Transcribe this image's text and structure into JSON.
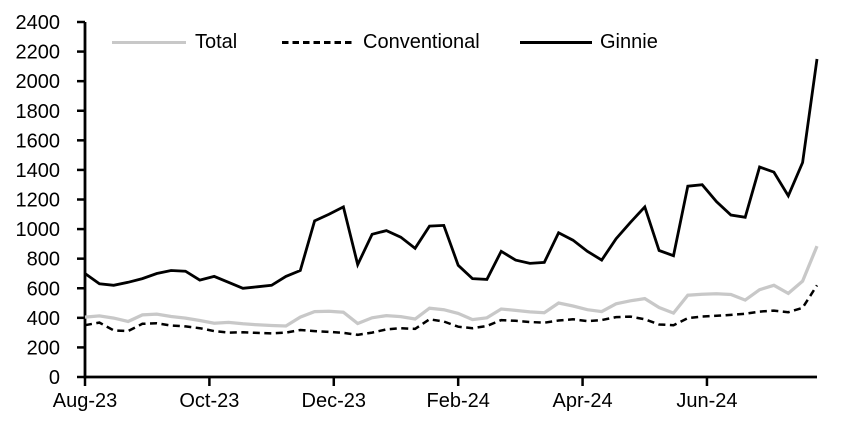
{
  "chart_data": {
    "type": "line",
    "title": "",
    "legend_position": "top",
    "grid": false,
    "x_axis": {
      "tick_labels": [
        "Aug-23",
        "Oct-23",
        "Dec-23",
        "Feb-24",
        "Apr-24",
        "Jun-24"
      ],
      "tick_week_positions": [
        0,
        8.667,
        17.333,
        26,
        34.667,
        43.333
      ]
    },
    "y_axis": {
      "min": 0,
      "max": 2400,
      "step": 200,
      "tick_labels": [
        "0",
        "200",
        "400",
        "600",
        "800",
        "1000",
        "1200",
        "1400",
        "1600",
        "1800",
        "2000",
        "2200",
        "2400"
      ]
    },
    "series": [
      {
        "name": "Total",
        "color": "#c8c8c8",
        "line_style": "solid",
        "values": [
          405,
          413,
          398,
          375,
          420,
          425,
          409,
          398,
          382,
          364,
          369,
          360,
          353,
          348,
          345,
          405,
          442,
          445,
          438,
          362,
          400,
          415,
          408,
          392,
          465,
          455,
          430,
          388,
          400,
          460,
          450,
          440,
          435,
          500,
          480,
          455,
          442,
          495,
          515,
          530,
          470,
          432,
          553,
          560,
          563,
          558,
          520,
          590,
          620,
          565,
          648,
          885
        ]
      },
      {
        "name": "Conventional",
        "color": "#000000",
        "line_style": "dashed",
        "values": [
          350,
          368,
          315,
          310,
          360,
          363,
          348,
          342,
          330,
          310,
          300,
          302,
          298,
          295,
          300,
          318,
          310,
          305,
          298,
          285,
          300,
          322,
          330,
          325,
          390,
          375,
          340,
          330,
          345,
          385,
          380,
          372,
          367,
          382,
          390,
          378,
          385,
          405,
          408,
          390,
          355,
          350,
          398,
          409,
          414,
          420,
          427,
          442,
          449,
          438,
          468,
          620
        ]
      },
      {
        "name": "Ginnie",
        "color": "#000000",
        "line_style": "solid",
        "values": [
          700,
          630,
          620,
          640,
          665,
          700,
          720,
          715,
          655,
          680,
          640,
          600,
          610,
          620,
          680,
          720,
          1055,
          1100,
          1150,
          760,
          965,
          990,
          945,
          870,
          1020,
          1025,
          755,
          665,
          660,
          850,
          790,
          768,
          775,
          975,
          925,
          850,
          790,
          935,
          1045,
          1150,
          855,
          820,
          1290,
          1300,
          1185,
          1095,
          1080,
          1420,
          1385,
          1225,
          1450,
          2150
        ]
      }
    ]
  }
}
